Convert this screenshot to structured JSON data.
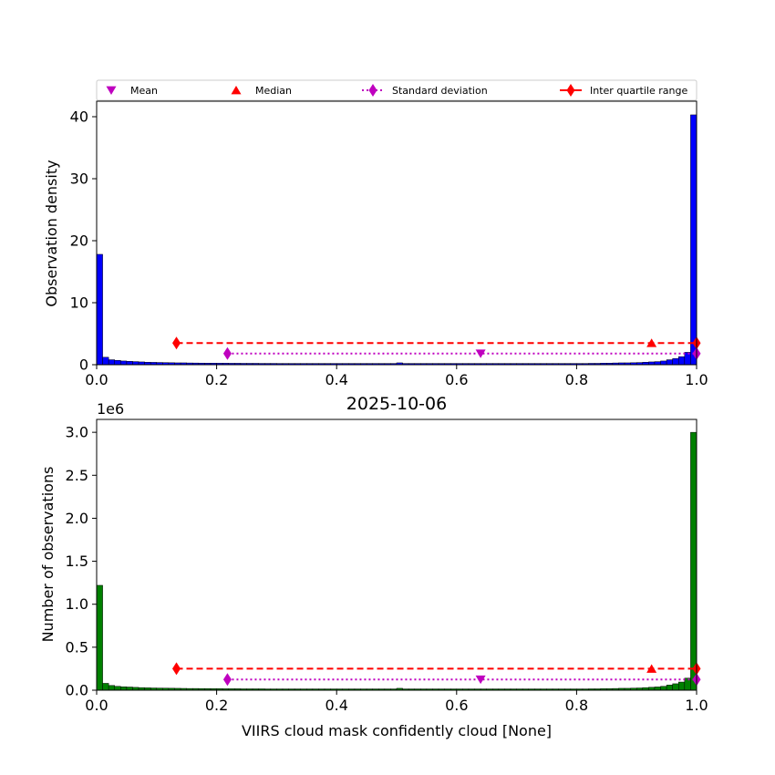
{
  "chart_data": [
    {
      "type": "bar",
      "title": "",
      "xlabel": "",
      "ylabel": "Observation density",
      "xlim": [
        0,
        1
      ],
      "ylim": [
        0,
        42.5
      ],
      "xticks": [
        "0.0",
        "0.2",
        "0.4",
        "0.6",
        "0.8",
        "1.0"
      ],
      "yticks": [
        "0",
        "10",
        "20",
        "30",
        "40"
      ],
      "bar_color": "#0000ff",
      "bin_edges": [
        0,
        1
      ],
      "bins": 100,
      "values": [
        17.8,
        1.2,
        0.8,
        0.7,
        0.6,
        0.55,
        0.5,
        0.45,
        0.4,
        0.38,
        0.36,
        0.34,
        0.32,
        0.3,
        0.3,
        0.28,
        0.27,
        0.26,
        0.25,
        0.25,
        0.24,
        0.24,
        0.23,
        0.23,
        0.22,
        0.22,
        0.22,
        0.21,
        0.21,
        0.21,
        0.2,
        0.2,
        0.2,
        0.2,
        0.2,
        0.2,
        0.2,
        0.2,
        0.2,
        0.2,
        0.2,
        0.2,
        0.2,
        0.2,
        0.2,
        0.2,
        0.2,
        0.2,
        0.2,
        0.2,
        0.3,
        0.2,
        0.2,
        0.2,
        0.2,
        0.2,
        0.2,
        0.2,
        0.2,
        0.2,
        0.2,
        0.2,
        0.2,
        0.2,
        0.2,
        0.2,
        0.2,
        0.2,
        0.2,
        0.2,
        0.2,
        0.2,
        0.2,
        0.2,
        0.2,
        0.2,
        0.2,
        0.2,
        0.2,
        0.2,
        0.2,
        0.2,
        0.22,
        0.22,
        0.25,
        0.25,
        0.28,
        0.3,
        0.3,
        0.32,
        0.35,
        0.4,
        0.45,
        0.5,
        0.6,
        0.8,
        1.0,
        1.3,
        2.0,
        40.3
      ],
      "stats": {
        "mean": {
          "x": 0.64,
          "y": 1.8
        },
        "median": {
          "x": 0.925,
          "y": 3.5
        },
        "std": {
          "x0": 0.218,
          "x1": 1.0,
          "y": 1.8
        },
        "iqr": {
          "x0": 0.133,
          "x1": 1.0,
          "y": 3.5
        }
      }
    },
    {
      "type": "bar",
      "title": "2025-10-06",
      "xlabel": "VIIRS cloud mask confidently cloud [None]",
      "ylabel": "Number of observations",
      "offset_label": "1e6",
      "xlim": [
        0,
        1
      ],
      "ylim": [
        0,
        3.15
      ],
      "xticks": [
        "0.0",
        "0.2",
        "0.4",
        "0.6",
        "0.8",
        "1.0"
      ],
      "yticks": [
        "0.0",
        "0.5",
        "1.0",
        "1.5",
        "2.0",
        "2.5",
        "3.0"
      ],
      "bar_color": "#008000",
      "bins": 100,
      "values": [
        1.22,
        0.08,
        0.055,
        0.045,
        0.04,
        0.037,
        0.033,
        0.03,
        0.028,
        0.026,
        0.025,
        0.024,
        0.023,
        0.022,
        0.021,
        0.02,
        0.02,
        0.019,
        0.019,
        0.018,
        0.018,
        0.017,
        0.017,
        0.017,
        0.016,
        0.016,
        0.016,
        0.016,
        0.015,
        0.015,
        0.015,
        0.015,
        0.015,
        0.015,
        0.015,
        0.015,
        0.015,
        0.015,
        0.015,
        0.015,
        0.015,
        0.015,
        0.015,
        0.015,
        0.015,
        0.015,
        0.015,
        0.015,
        0.015,
        0.015,
        0.022,
        0.015,
        0.015,
        0.015,
        0.015,
        0.015,
        0.015,
        0.015,
        0.015,
        0.015,
        0.015,
        0.015,
        0.015,
        0.015,
        0.015,
        0.015,
        0.015,
        0.015,
        0.015,
        0.015,
        0.015,
        0.015,
        0.015,
        0.015,
        0.015,
        0.015,
        0.015,
        0.015,
        0.015,
        0.015,
        0.015,
        0.015,
        0.016,
        0.016,
        0.018,
        0.018,
        0.02,
        0.022,
        0.022,
        0.024,
        0.026,
        0.03,
        0.034,
        0.038,
        0.045,
        0.06,
        0.075,
        0.095,
        0.14,
        3.0
      ],
      "stats": {
        "mean": {
          "x": 0.64,
          "y": 0.125
        },
        "median": {
          "x": 0.925,
          "y": 0.25
        },
        "std": {
          "x0": 0.218,
          "x1": 1.0,
          "y": 0.125
        },
        "iqr": {
          "x0": 0.133,
          "x1": 1.0,
          "y": 0.25
        }
      }
    }
  ],
  "legend": {
    "placement": "above top plot",
    "entries": [
      {
        "label": "Mean",
        "marker": "triangle-down",
        "color": "#bf00bf"
      },
      {
        "label": "Median",
        "marker": "triangle-up",
        "color": "#ff0000"
      },
      {
        "label": "Standard deviation",
        "marker": "thin-diamond",
        "line": "dotted",
        "color": "#bf00bf"
      },
      {
        "label": "Inter quartile range",
        "marker": "thin-diamond",
        "line": "solid",
        "color": "#ff0000"
      }
    ]
  }
}
